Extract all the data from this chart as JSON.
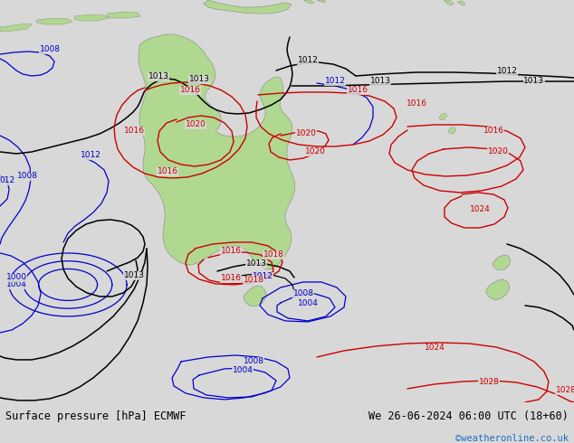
{
  "title_left": "Surface pressure [hPa] ECMWF",
  "title_right": "We 26-06-2024 06:00 UTC (18+60)",
  "credit": "©weatheronline.co.uk",
  "bg_color": "#d8d8d8",
  "land_color": "#b0d890",
  "land_edge": "#888888",
  "figsize": [
    6.34,
    4.9
  ],
  "dpi": 100,
  "bottom_bar_color": "#ffffff",
  "title_color": "#000000",
  "credit_color": "#1a6fc4",
  "blue": "#0000cc",
  "red": "#cc0000",
  "black": "#000000"
}
